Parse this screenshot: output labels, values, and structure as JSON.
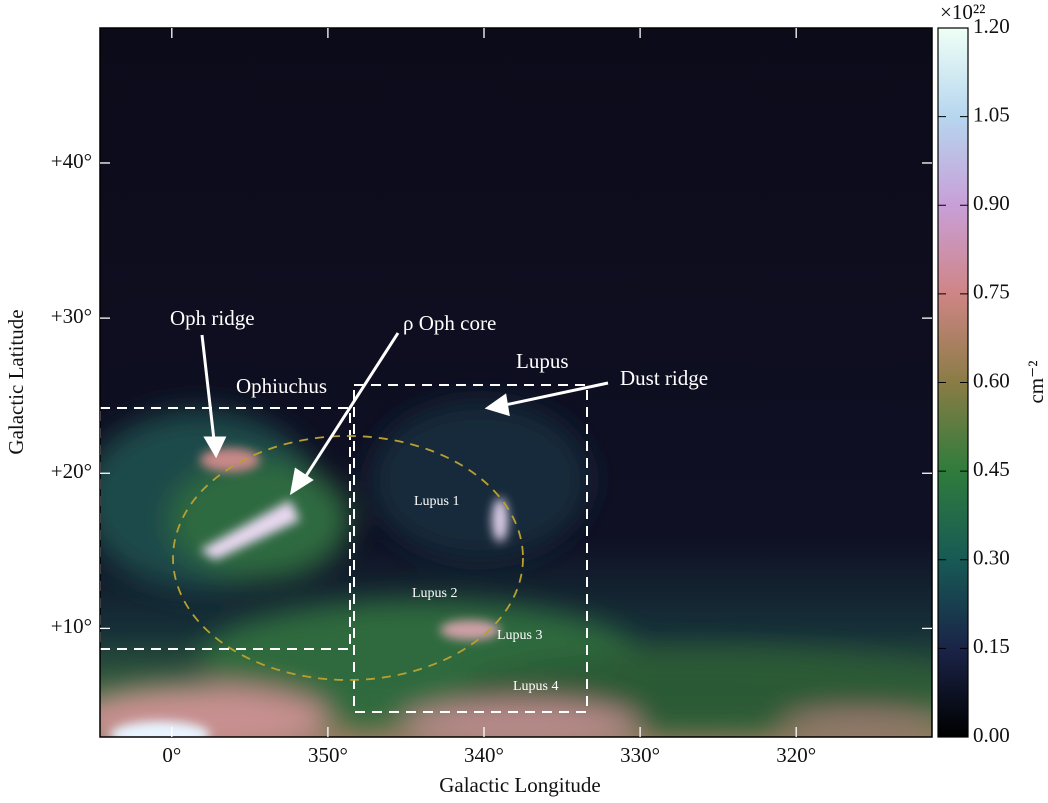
{
  "chart_data": {
    "type": "image",
    "xlabel": "Galactic Longitude",
    "ylabel": "Galactic Latitude",
    "xlim": [
      4.6,
      -48.7
    ],
    "xticks": [
      {
        "value": 0,
        "label": "0°"
      },
      {
        "value": -10,
        "label": "350°"
      },
      {
        "value": -20,
        "label": "340°"
      },
      {
        "value": -30,
        "label": "330°"
      },
      {
        "value": -40,
        "label": "320°"
      }
    ],
    "ylim": [
      3.0,
      48.7
    ],
    "yticks": [
      {
        "value": 10,
        "label": "+10°"
      },
      {
        "value": 20,
        "label": "+20°"
      },
      {
        "value": 30,
        "label": "+30°"
      },
      {
        "value": 40,
        "label": "+40°"
      }
    ],
    "colorbar": {
      "label": "cm⁻²",
      "multiplier": "×10²²",
      "lim": [
        0,
        1.2
      ],
      "ticks": [
        {
          "value": 0,
          "label": "0.00"
        },
        {
          "value": 0.15,
          "label": "0.15"
        },
        {
          "value": 0.3,
          "label": "0.30"
        },
        {
          "value": 0.45,
          "label": "0.45"
        },
        {
          "value": 0.6,
          "label": "0.60"
        },
        {
          "value": 0.75,
          "label": "0.75"
        },
        {
          "value": 0.9,
          "label": "0.90"
        },
        {
          "value": 1.05,
          "label": "1.05"
        },
        {
          "value": 1.2,
          "label": "1.20"
        }
      ]
    },
    "annotations": [
      "Oph ridge",
      "ρ Oph core",
      "Ophiuchus",
      "Lupus",
      "Dust ridge",
      "Lupus 1",
      "Lupus 2",
      "Lupus 3",
      "Lupus 4"
    ]
  }
}
